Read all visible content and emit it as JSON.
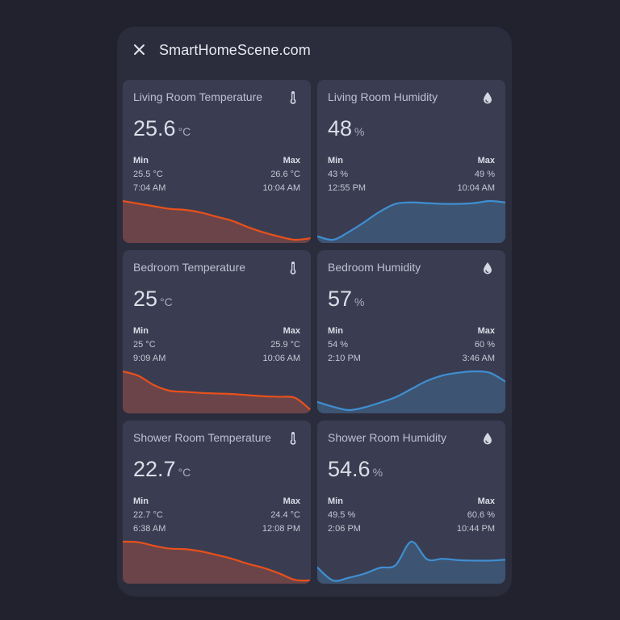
{
  "dialog": {
    "title": "SmartHomeScene.com",
    "close_icon": "close-icon"
  },
  "colors": {
    "temperature_line": "#e8501c",
    "temperature_fill": "#6a4448",
    "humidity_line": "#3f8fd2",
    "humidity_fill": "#3d5472",
    "card_bg": "#3a3d51",
    "dialog_bg": "#2b2d3d",
    "page_bg": "#21222d"
  },
  "cards": [
    {
      "name": "Living Room Temperature",
      "icon": "thermometer-icon",
      "kind": "temperature",
      "state": "25.6",
      "unit": "°C",
      "min_label": "Min",
      "min_value": "25.5 °C",
      "min_time": "7:04 AM",
      "max_label": "Max",
      "max_value": "26.6 °C",
      "max_time": "10:04 AM",
      "history": [
        26.1,
        26.05,
        26.0,
        25.95,
        25.93,
        25.88,
        25.8,
        25.72,
        25.6,
        25.5,
        25.42,
        25.36,
        25.39
      ]
    },
    {
      "name": "Living Room Humidity",
      "icon": "water-drop-icon",
      "kind": "humidity",
      "state": "48",
      "unit": "%",
      "min_label": "Min",
      "min_value": "43 %",
      "min_time": "12:55 PM",
      "max_label": "Max",
      "max_value": "49 %",
      "max_time": "10:04 AM",
      "history": [
        44,
        43.5,
        44.6,
        46,
        47.5,
        48.6,
        48.8,
        48.7,
        48.6,
        48.6,
        48.7,
        49,
        48.8
      ]
    },
    {
      "name": "Bedroom Temperature",
      "icon": "thermometer-icon",
      "kind": "temperature",
      "state": "25",
      "unit": "°C",
      "min_label": "Min",
      "min_value": "25 °C",
      "min_time": "9:09 AM",
      "max_label": "Max",
      "max_value": "25.9 °C",
      "max_time": "10:06 AM",
      "history": [
        25.7,
        25.62,
        25.45,
        25.35,
        25.33,
        25.31,
        25.3,
        25.29,
        25.27,
        25.25,
        25.24,
        25.22,
        25.0
      ]
    },
    {
      "name": "Bedroom Humidity",
      "icon": "water-drop-icon",
      "kind": "humidity",
      "state": "57",
      "unit": "%",
      "min_label": "Min",
      "min_value": "54 %",
      "min_time": "2:10 PM",
      "max_label": "Max",
      "max_value": "60 %",
      "max_time": "3:46 AM",
      "history": [
        55.5,
        54.8,
        54.3,
        54.7,
        55.4,
        56.2,
        57.4,
        58.6,
        59.4,
        59.8,
        60,
        59.8,
        58.5
      ]
    },
    {
      "name": "Shower Room Temperature",
      "icon": "thermometer-icon",
      "kind": "temperature",
      "state": "22.7",
      "unit": "°C",
      "min_label": "Min",
      "min_value": "22.7 °C",
      "min_time": "6:38 AM",
      "max_label": "Max",
      "max_value": "24.4 °C",
      "max_time": "12:08 PM",
      "history": [
        24.1,
        24.08,
        23.95,
        23.85,
        23.83,
        23.75,
        23.62,
        23.48,
        23.3,
        23.15,
        22.95,
        22.72,
        22.7
      ]
    },
    {
      "name": "Shower Room Humidity",
      "icon": "water-drop-icon",
      "kind": "humidity",
      "state": "54.6",
      "unit": "%",
      "min_label": "Min",
      "min_value": "49.5 %",
      "min_time": "2:06 PM",
      "max_label": "Max",
      "max_value": "60.6 %",
      "max_time": "10:44 PM",
      "history": [
        52.5,
        49.6,
        50.2,
        51.1,
        52.4,
        53,
        58.2,
        54.3,
        54.4,
        54.1,
        54,
        54,
        54.2
      ]
    }
  ]
}
